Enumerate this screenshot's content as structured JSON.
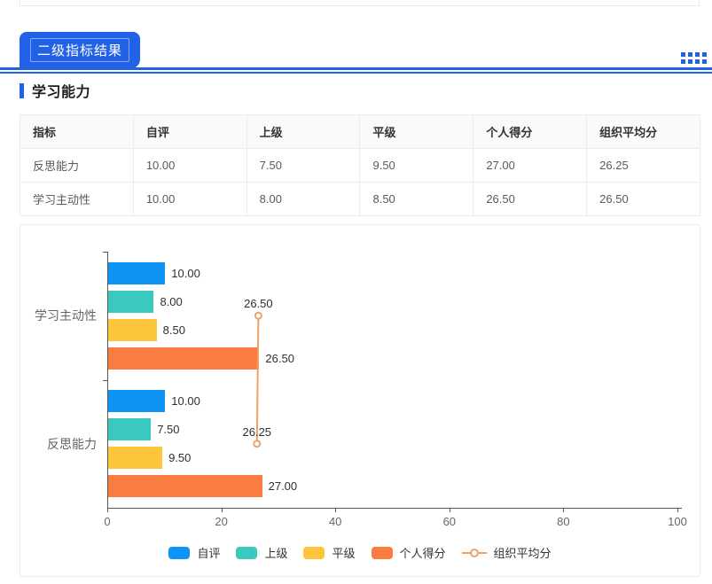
{
  "header": {
    "tab_label": "二级指标结果",
    "section_title": "学习能力"
  },
  "colors": {
    "accent_blue": "#2262e9",
    "axis": "#565656",
    "self": "#0d94f5",
    "superior": "#3bc8bf",
    "peer": "#fdc53c",
    "personal": "#f97c42",
    "org_average": "#f0a264"
  },
  "table": {
    "columns": [
      "指标",
      "自评",
      "上级",
      "平级",
      "个人得分",
      "组织平均分"
    ],
    "rows": [
      [
        "反思能力",
        "10.00",
        "7.50",
        "9.50",
        "27.00",
        "26.25"
      ],
      [
        "学习主动性",
        "10.00",
        "8.00",
        "8.50",
        "26.50",
        "26.50"
      ]
    ]
  },
  "chart_data": {
    "type": "bar",
    "orientation": "horizontal",
    "categories": [
      "学习主动性",
      "反思能力"
    ],
    "series": [
      {
        "name": "自评",
        "key": "self-rating",
        "type": "bar",
        "color": "#0d94f5",
        "values": [
          10.0,
          10.0
        ]
      },
      {
        "name": "上级",
        "key": "superior",
        "type": "bar",
        "color": "#3bc8bf",
        "values": [
          8.0,
          7.5
        ]
      },
      {
        "name": "平级",
        "key": "peer",
        "type": "bar",
        "color": "#fdc53c",
        "values": [
          8.5,
          9.5
        ]
      },
      {
        "name": "个人得分",
        "key": "personal-score",
        "type": "bar",
        "color": "#f97c42",
        "values": [
          26.5,
          27.0
        ]
      },
      {
        "name": "组织平均分",
        "key": "org-average",
        "type": "line",
        "color": "#f0a264",
        "values": [
          26.5,
          26.25
        ]
      }
    ],
    "xlim": [
      0,
      100
    ],
    "x_ticks": [
      0,
      20,
      40,
      60,
      80,
      100
    ],
    "legend_position": "bottom",
    "grid": false,
    "value_labels": true,
    "value_decimals": 2
  }
}
